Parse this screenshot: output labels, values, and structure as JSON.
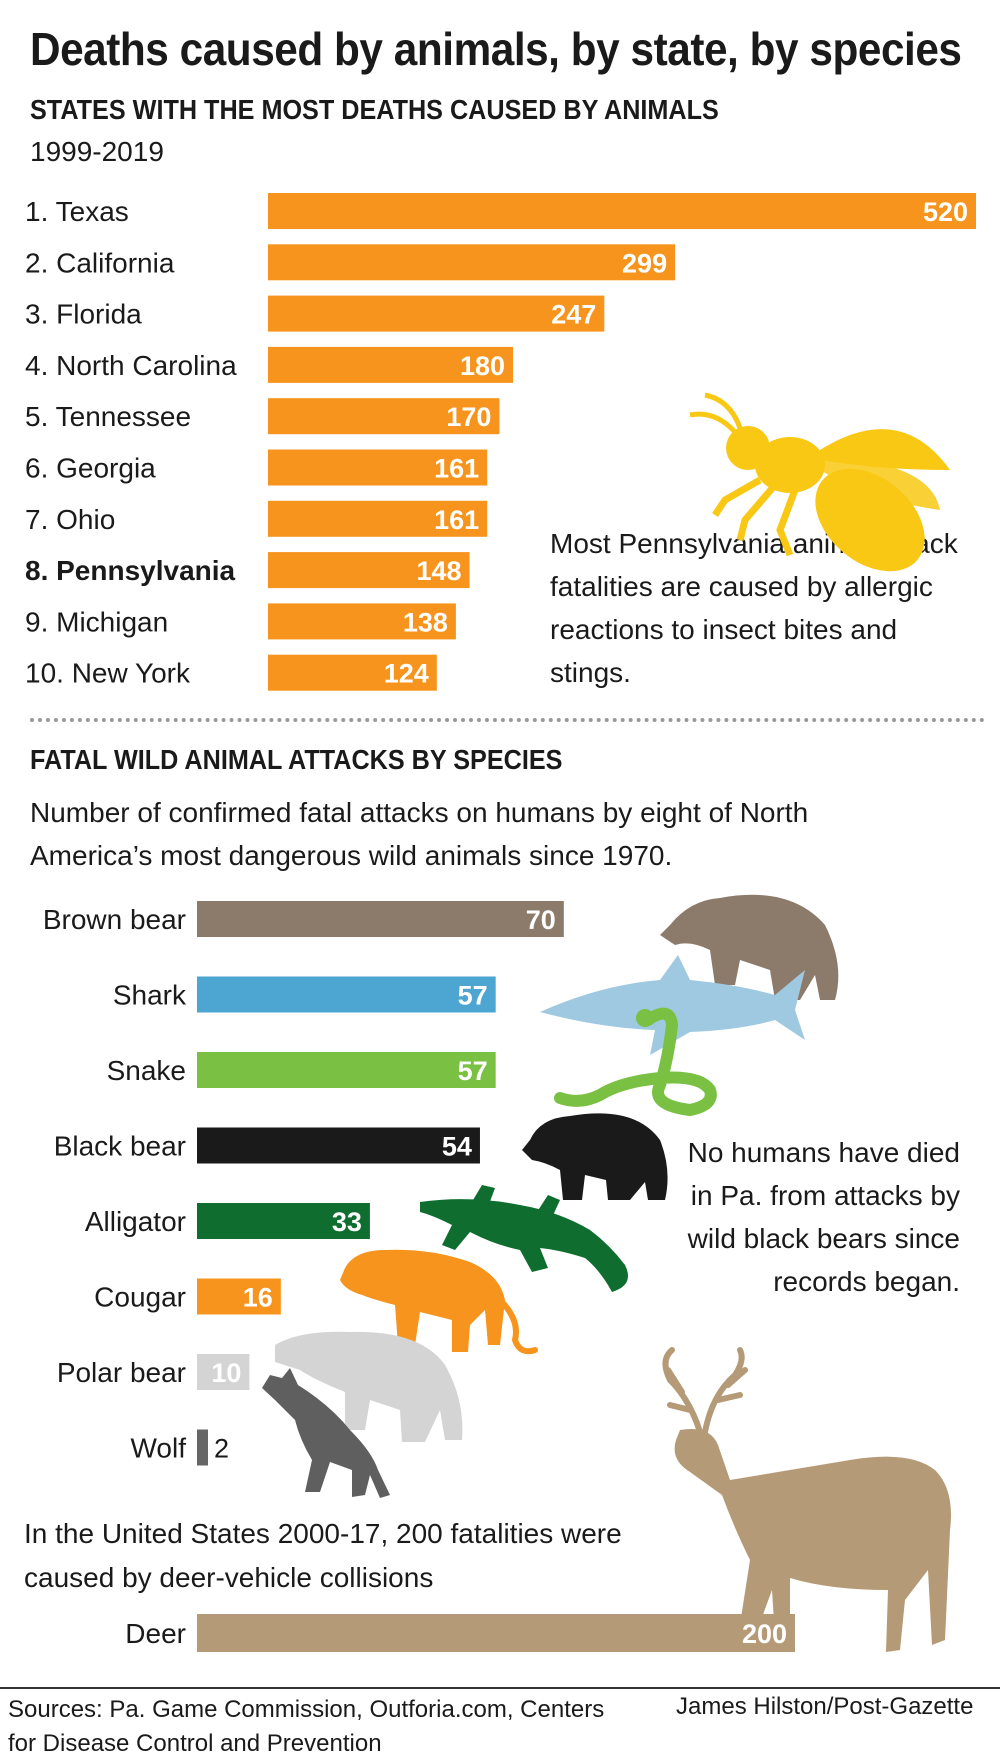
{
  "title": "Deaths caused by animals, by state, by species",
  "section1": {
    "title": "STATES WITH THE MOST DEATHS CAUSED BY ANIMALS",
    "subtitle": "1999-2019",
    "note": "Most Pennsylvania animal attack fatalities are caused by allergic reactions to insect bites and stings."
  },
  "section2": {
    "title": "FATAL WILD ANIMAL ATTACKS BY SPECIES",
    "description": "Number of confirmed fatal attacks on humans by eight of North America’s most dangerous wild animals since 1970.",
    "note": "No humans have died in Pa. from attacks by wild black bears since records began.",
    "deer_note": "In the United States 2000-17, 200 fatalities were caused by deer-vehicle collisions"
  },
  "footer": {
    "sources": "Sources: Pa. Game Commission, Outforia.com, Centers for Disease Control and Prevention",
    "credit": "James Hilston/Post-Gazette"
  },
  "icons": [
    "bee-icon",
    "brown-bear-icon",
    "shark-icon",
    "snake-icon",
    "black-bear-icon",
    "alligator-icon",
    "cougar-icon",
    "polar-bear-icon",
    "wolf-icon",
    "deer-icon"
  ],
  "chart_data": [
    {
      "type": "bar",
      "orientation": "horizontal",
      "title": "STATES WITH THE MOST DEATHS CAUSED BY ANIMALS",
      "subtitle": "1999-2019",
      "color": "#f7941d",
      "categories": [
        "1. Texas",
        "2. California",
        "3. Florida",
        "4. North Carolina",
        "5. Tennessee",
        "6. Georgia",
        "7. Ohio",
        "8. Pennsylvania",
        "9. Michigan",
        "10. New York"
      ],
      "values": [
        520,
        299,
        247,
        180,
        170,
        161,
        161,
        148,
        138,
        124
      ],
      "highlight": "8. Pennsylvania",
      "xlim": [
        0,
        520
      ],
      "grid": false
    },
    {
      "type": "bar",
      "orientation": "horizontal",
      "title": "FATAL WILD ANIMAL ATTACKS BY SPECIES",
      "categories": [
        "Brown bear",
        "Shark",
        "Snake",
        "Black bear",
        "Alligator",
        "Cougar",
        "Polar bear",
        "Wolf"
      ],
      "values": [
        70,
        57,
        57,
        54,
        33,
        16,
        10,
        2
      ],
      "colors": [
        "#8c7b6b",
        "#4da6d1",
        "#7ac143",
        "#1a1a1a",
        "#0f6e2f",
        "#f7941d",
        "#d4d4d4",
        "#666666"
      ],
      "xlim": [
        0,
        200
      ],
      "grid": false
    },
    {
      "type": "bar",
      "orientation": "horizontal",
      "categories": [
        "Deer"
      ],
      "values": [
        200
      ],
      "colors": [
        "#b59a78"
      ],
      "xlim": [
        0,
        200
      ],
      "grid": false
    }
  ]
}
